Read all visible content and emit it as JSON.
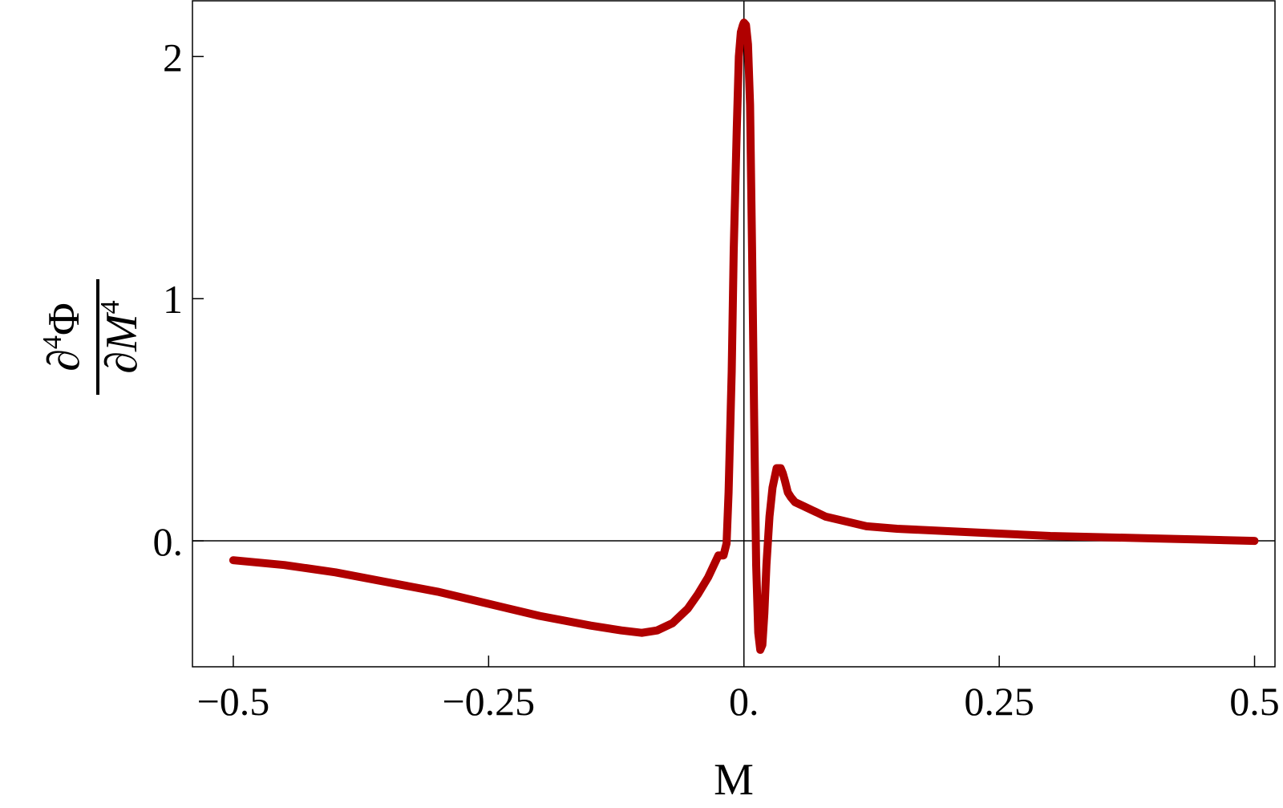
{
  "chart_data": {
    "type": "line",
    "xlabel": "M",
    "ylabel": {
      "numerator": "∂",
      "numerator_power": "4",
      "numerator_symbol": "Φ",
      "denominator": "∂",
      "denominator_symbol": "M",
      "denominator_power": "4"
    },
    "xlim": [
      -0.54,
      0.52
    ],
    "ylim": [
      -0.52,
      2.23
    ],
    "x_ticks": [
      -0.5,
      -0.25,
      0.0,
      0.25,
      0.5
    ],
    "x_tick_labels": [
      "−0.5",
      "−0.25",
      "0.",
      "0.25",
      "0.5"
    ],
    "y_ticks": [
      0,
      1,
      2
    ],
    "y_tick_labels": [
      "0.",
      "1",
      "2"
    ],
    "grid": false,
    "line_color": "#b00000",
    "axis_line_color": "#000000",
    "series": [
      {
        "x": [
          -0.5,
          -0.45,
          -0.4,
          -0.35,
          -0.3,
          -0.25,
          -0.2,
          -0.15,
          -0.12,
          -0.1,
          -0.085,
          -0.07,
          -0.055,
          -0.045,
          -0.035,
          -0.025,
          -0.02,
          -0.017,
          -0.015,
          -0.012,
          -0.01,
          -0.007,
          -0.005,
          -0.003,
          -0.001,
          0.0,
          0.002,
          0.004,
          0.006,
          0.008,
          0.01,
          0.012,
          0.014,
          0.016,
          0.018,
          0.02,
          0.022,
          0.025,
          0.028,
          0.032,
          0.036,
          0.038,
          0.04,
          0.043,
          0.046,
          0.05,
          0.06,
          0.07,
          0.08,
          0.1,
          0.12,
          0.15,
          0.2,
          0.25,
          0.3,
          0.35,
          0.4,
          0.45,
          0.5
        ],
        "y": [
          -0.08,
          -0.1,
          -0.13,
          -0.17,
          -0.21,
          -0.26,
          -0.31,
          -0.35,
          -0.37,
          -0.38,
          -0.37,
          -0.34,
          -0.28,
          -0.22,
          -0.15,
          -0.06,
          -0.06,
          -0.01,
          0.2,
          0.7,
          1.2,
          1.7,
          2.0,
          2.1,
          2.13,
          2.14,
          2.13,
          2.05,
          1.8,
          1.2,
          0.5,
          -0.1,
          -0.38,
          -0.45,
          -0.43,
          -0.3,
          -0.1,
          0.1,
          0.22,
          0.3,
          0.3,
          0.28,
          0.25,
          0.2,
          0.18,
          0.16,
          0.14,
          0.12,
          0.1,
          0.08,
          0.06,
          0.05,
          0.04,
          0.03,
          0.02,
          0.015,
          0.01,
          0.005,
          0.0
        ]
      }
    ]
  }
}
